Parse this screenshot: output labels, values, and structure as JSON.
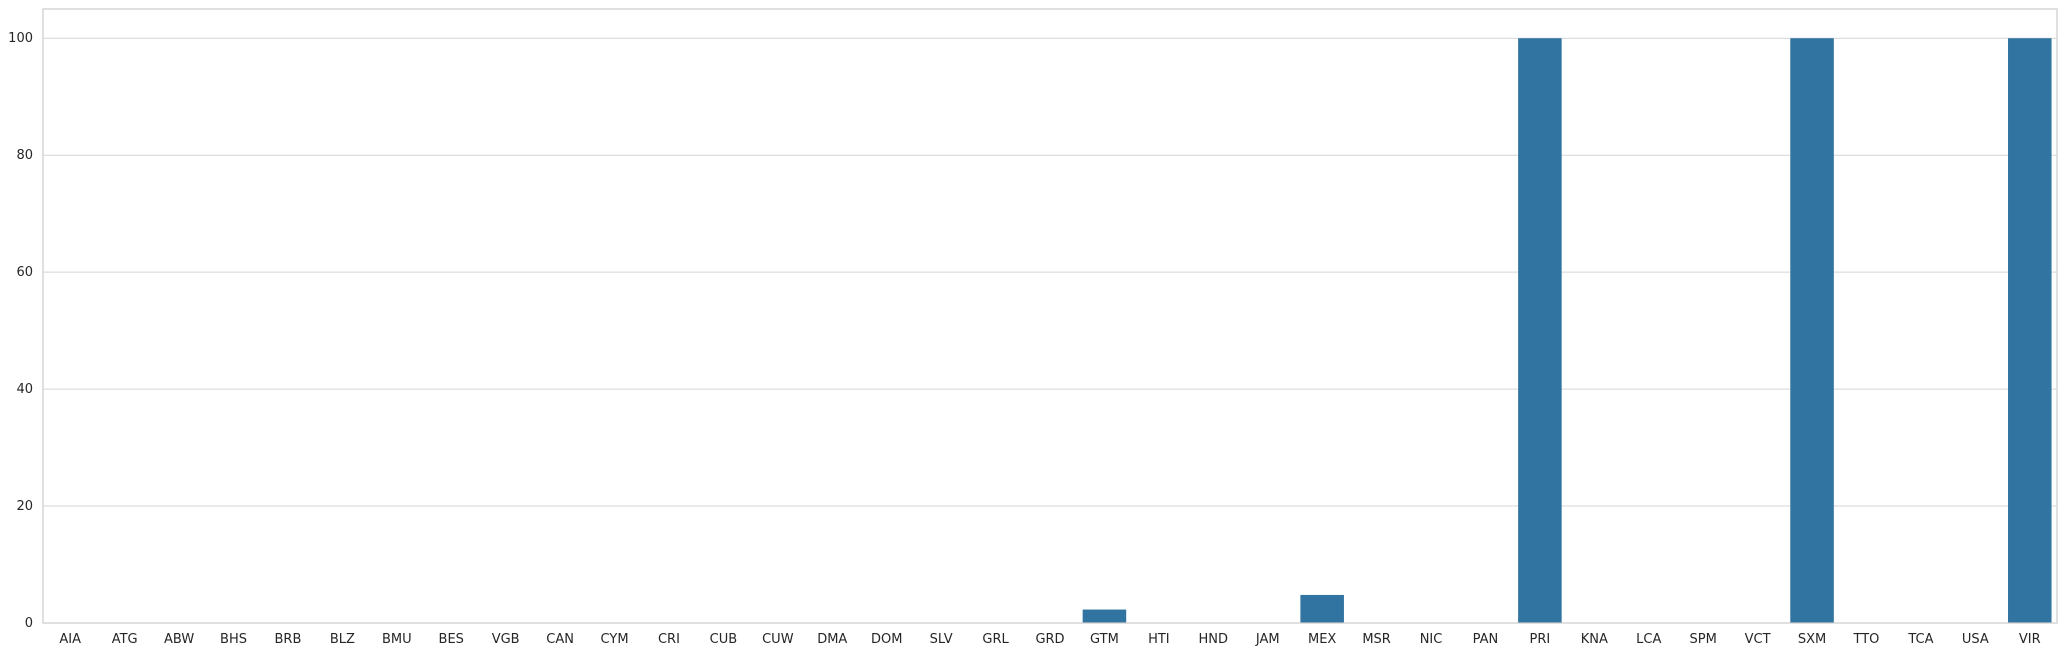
{
  "chart_data": {
    "type": "bar",
    "categories": [
      "AIA",
      "ATG",
      "ABW",
      "BHS",
      "BRB",
      "BLZ",
      "BMU",
      "BES",
      "VGB",
      "CAN",
      "CYM",
      "CRI",
      "CUB",
      "CUW",
      "DMA",
      "DOM",
      "SLV",
      "GRL",
      "GRD",
      "GTM",
      "HTI",
      "HND",
      "JAM",
      "MEX",
      "MSR",
      "NIC",
      "PAN",
      "PRI",
      "KNA",
      "LCA",
      "SPM",
      "VCT",
      "SXM",
      "TTO",
      "TCA",
      "USA",
      "VIR"
    ],
    "values": [
      0,
      0,
      0,
      0,
      0,
      0,
      0,
      0,
      0,
      0,
      0,
      0,
      0,
      0,
      0,
      0,
      0,
      0,
      0,
      2.3,
      0,
      0,
      0,
      4.8,
      0,
      0,
      0,
      100,
      0,
      0,
      0,
      0,
      100,
      0,
      0,
      0,
      100
    ],
    "ylim": [
      0,
      105
    ],
    "yticks": [
      0,
      20,
      40,
      60,
      80,
      100
    ],
    "title": "",
    "xlabel": "",
    "ylabel": "",
    "grid": "horizontal",
    "colors": {
      "bar": "#3274a1",
      "grid": "#d5d5d5",
      "frame": "#cccccc",
      "text": "#262626"
    }
  }
}
